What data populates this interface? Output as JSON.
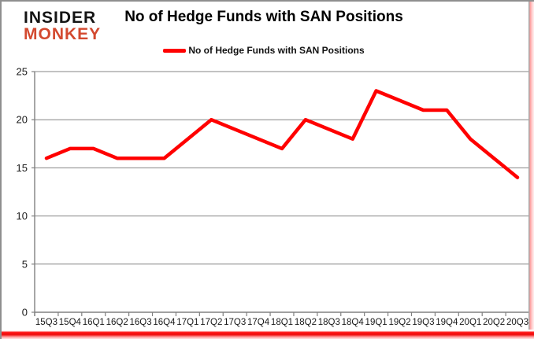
{
  "logo": {
    "line1": "INSIDER",
    "line2": "MONKEY",
    "color_top": "#141414",
    "color_bottom": "#d3492f"
  },
  "header": {
    "title": "No of Hedge Funds with SAN Positions"
  },
  "legend": {
    "label": "No of Hedge Funds with SAN Positions",
    "swatch_color": "#ff0000"
  },
  "chart_data": {
    "type": "line",
    "title": "No of Hedge Funds with SAN Positions",
    "series_name": "No of Hedge Funds with SAN Positions",
    "categories": [
      "15Q3",
      "15Q4",
      "16Q1",
      "16Q2",
      "16Q3",
      "16Q4",
      "17Q1",
      "17Q2",
      "17Q3",
      "17Q4",
      "18Q1",
      "18Q2",
      "18Q3",
      "18Q4",
      "19Q1",
      "19Q2",
      "19Q3",
      "19Q4",
      "20Q1",
      "20Q2",
      "20Q3"
    ],
    "values": [
      16,
      17,
      17,
      16,
      16,
      16,
      18,
      20,
      19,
      18,
      17,
      20,
      19,
      18,
      23,
      22,
      21,
      21,
      18,
      16,
      14
    ],
    "xlabel": "",
    "ylabel": "",
    "ylim": [
      0,
      25
    ],
    "yticks": [
      0,
      5,
      10,
      15,
      20,
      25
    ],
    "grid": true,
    "legend_position": "top",
    "line_color": "#ff0000",
    "gridline_color": "#848484",
    "axis_color": "#808080",
    "tick_label_color": "#1a1a1a"
  },
  "frame": {
    "background": "#ffffff",
    "border_gray": "#8f8f8f",
    "bottom_bar_red": "#ee1111",
    "glow_pink": "#ffd6d6"
  }
}
